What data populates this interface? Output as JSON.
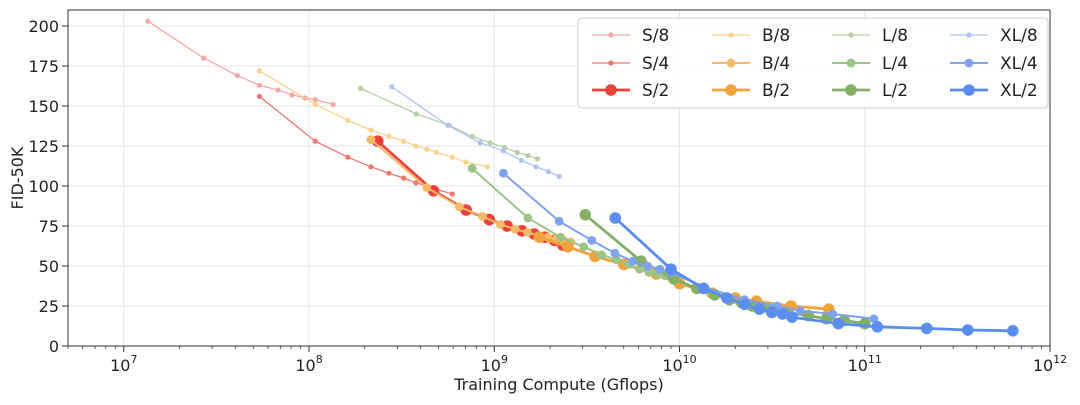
{
  "chart_data": {
    "type": "line",
    "title": "",
    "xlabel": "Training Compute (Gflops)",
    "ylabel": "FID-50K",
    "xscale": "log",
    "xlim": [
      5000000,
      1000000000000
    ],
    "ylim": [
      0,
      210
    ],
    "xticks": [
      {
        "value": 10000000,
        "base": "10",
        "exp": "7"
      },
      {
        "value": 100000000,
        "base": "10",
        "exp": "8"
      },
      {
        "value": 1000000000,
        "base": "10",
        "exp": "9"
      },
      {
        "value": 10000000000,
        "base": "10",
        "exp": "10"
      },
      {
        "value": 100000000000,
        "base": "10",
        "exp": "11"
      },
      {
        "value": 1000000000000,
        "base": "10",
        "exp": "12"
      }
    ],
    "yticks": [
      0,
      25,
      50,
      75,
      100,
      125,
      150,
      175,
      200
    ],
    "grid": true,
    "legend_position": "top-right",
    "series": [
      {
        "name": "S/8",
        "color": "#f4a8a3",
        "size": "small",
        "x": [
          13500000,
          27000000,
          41000000,
          54000000,
          68000000,
          81000000,
          95000000,
          108000000,
          135000000
        ],
        "y": [
          203,
          180,
          169,
          163,
          160,
          157,
          155,
          154,
          151
        ]
      },
      {
        "name": "S/4",
        "color": "#ee7670",
        "size": "small",
        "x": [
          54000000,
          108000000,
          162000000,
          216000000,
          270000000,
          324000000,
          378000000,
          432000000,
          486000000,
          594000000
        ],
        "y": [
          156,
          128,
          118,
          112,
          108,
          105,
          102,
          100,
          98,
          95
        ]
      },
      {
        "name": "S/2",
        "color": "#e8423a",
        "size": "large",
        "x": [
          235000000,
          470000000,
          705000000,
          940000000,
          1175000000,
          1410000000,
          1645000000,
          1880000000,
          2115000000,
          2350000000
        ],
        "y": [
          128,
          97,
          85,
          79,
          75,
          72,
          70,
          68,
          66,
          63
        ]
      },
      {
        "name": "B/8",
        "color": "#f9d28e",
        "size": "small",
        "x": [
          54000000,
          108000000,
          162000000,
          216000000,
          270000000,
          324000000,
          378000000,
          432000000,
          486000000,
          594000000,
          702000000,
          918000000
        ],
        "y": [
          172,
          151,
          141,
          135,
          131,
          128,
          125,
          123,
          121,
          118,
          115,
          112
        ]
      },
      {
        "name": "B/4",
        "color": "#f5b968",
        "size": "medium",
        "x": [
          216000000,
          432000000,
          648000000,
          864000000,
          1080000000,
          1296000000,
          1512000000,
          1728000000,
          1944000000,
          2160000000,
          2376000000,
          2592000000
        ],
        "y": [
          129,
          99,
          87,
          81,
          76,
          73,
          71,
          69,
          68,
          67,
          66,
          65
        ]
      },
      {
        "name": "B/2",
        "color": "#f0a33c",
        "size": "large",
        "x": [
          1750000000,
          2500000000,
          3500000000,
          5000000000,
          7500000000,
          10000000000,
          15000000000,
          20000000000,
          26000000000,
          40000000000,
          64000000000
        ],
        "y": [
          68,
          62,
          56,
          51,
          45,
          39,
          33,
          30,
          28,
          25,
          23
        ]
      },
      {
        "name": "L/8",
        "color": "#b5d0a4",
        "size": "small",
        "x": [
          190000000,
          380000000,
          570000000,
          760000000,
          950000000,
          1140000000,
          1330000000,
          1520000000,
          1710000000
        ],
        "y": [
          161,
          145,
          138,
          131,
          127,
          124,
          121,
          119,
          117
        ]
      },
      {
        "name": "L/4",
        "color": "#9dc487",
        "size": "medium",
        "x": [
          760000000,
          1520000000,
          2280000000,
          3040000000,
          3800000000,
          4560000000,
          5320000000,
          6080000000,
          6840000000,
          7600000000,
          8360000000,
          9120000000
        ],
        "y": [
          111,
          80,
          68,
          62,
          57,
          54,
          51,
          48,
          46,
          45,
          44,
          43
        ]
      },
      {
        "name": "L/2",
        "color": "#84b065",
        "size": "large",
        "x": [
          3100000000,
          6200000000,
          9300000000,
          12400000000,
          15500000000,
          18600000000,
          21700000000,
          24800000000,
          27900000000,
          31000000000,
          37200000000,
          49600000000,
          62000000000,
          77500000000,
          100000000000
        ],
        "y": [
          82,
          53,
          42,
          36,
          32,
          29,
          27,
          25,
          24,
          23,
          21,
          19,
          17,
          16,
          14
        ]
      },
      {
        "name": "XL/8",
        "color": "#abc4f2",
        "size": "small",
        "x": [
          280000000,
          560000000,
          840000000,
          1120000000,
          1400000000,
          1680000000,
          1960000000,
          2240000000
        ],
        "y": [
          162,
          138,
          127,
          122,
          116,
          112,
          109,
          106
        ]
      },
      {
        "name": "XL/4",
        "color": "#7fa2ee",
        "size": "medium",
        "x": [
          1120000000,
          2240000000,
          3360000000,
          4480000000,
          5600000000,
          6720000000,
          7840000000,
          8960000000,
          13440000000,
          22400000000,
          33600000000,
          44800000000,
          67200000000,
          112000000000
        ],
        "y": [
          108,
          78,
          66,
          58,
          53,
          50,
          48,
          46,
          37,
          29,
          25,
          22,
          20,
          17
        ]
      },
      {
        "name": "XL/2",
        "color": "#5b8def",
        "size": "large",
        "x": [
          4500000000,
          9000000000,
          13500000000,
          18000000000,
          22500000000,
          27000000000,
          31500000000,
          36000000000,
          40500000000,
          72000000000,
          117000000000,
          216000000000,
          360000000000,
          630000000000
        ],
        "y": [
          80,
          48,
          36,
          30,
          26,
          23,
          21,
          20,
          18,
          14,
          12,
          11,
          10,
          9.5
        ]
      }
    ]
  }
}
